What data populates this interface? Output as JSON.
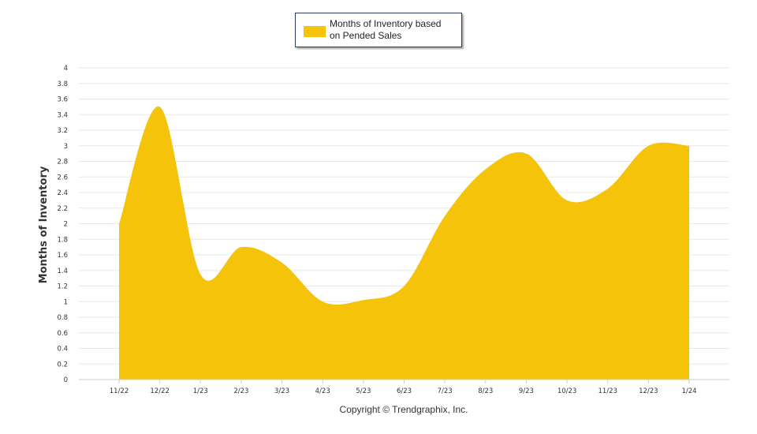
{
  "chart_data": {
    "type": "area",
    "categories": [
      "11/22",
      "12/22",
      "1/23",
      "2/23",
      "3/23",
      "4/23",
      "5/23",
      "6/23",
      "7/23",
      "8/23",
      "9/23",
      "10/23",
      "11/23",
      "12/23",
      "1/24"
    ],
    "series": [
      {
        "name": "Months of Inventory based on Pended Sales",
        "values": [
          2.0,
          3.5,
          1.35,
          1.7,
          1.5,
          1.0,
          1.02,
          1.2,
          2.1,
          2.7,
          2.9,
          2.3,
          2.45,
          3.0,
          3.0
        ],
        "color": "#f5c30a"
      }
    ],
    "title": "",
    "xlabel": "",
    "ylabel": "Months of Inventory",
    "ylim": [
      0,
      4
    ],
    "yticks": [
      "0",
      "0.2",
      "0.4",
      "0.6",
      "0.8",
      "1",
      "1.2",
      "1.4",
      "1.6",
      "1.8",
      "2",
      "2.2",
      "2.4",
      "2.6",
      "2.8",
      "3",
      "3.2",
      "3.4",
      "3.6",
      "3.8",
      "4"
    ],
    "grid": true,
    "legend_position": "top-center"
  },
  "legend": {
    "label_line1": "Months of Inventory based",
    "label_line2": "on Pended Sales",
    "color": "#f5c30a"
  },
  "footer": {
    "copyright": "Copyright © Trendgraphix, Inc."
  }
}
